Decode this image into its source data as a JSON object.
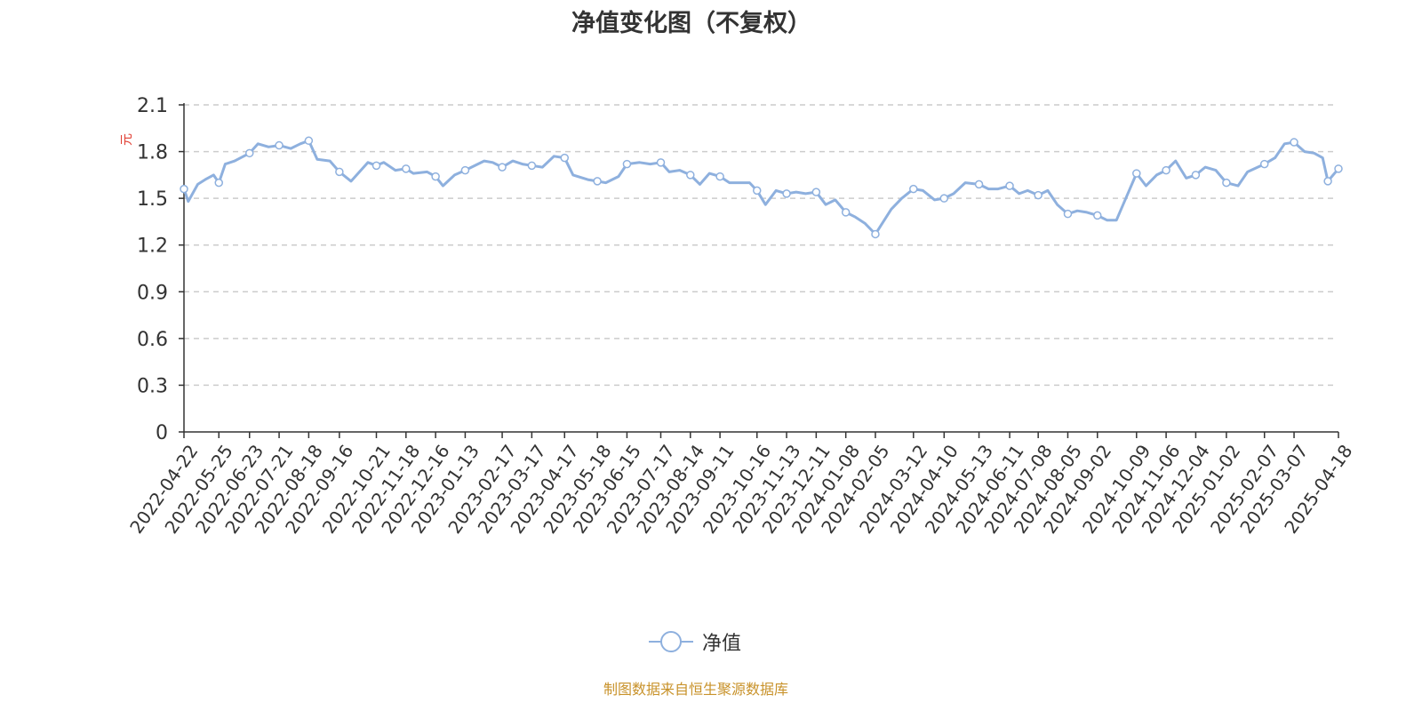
{
  "title": "净值变化图（不复权）",
  "source_note": "制图数据来自恒生聚源数据库",
  "colors": {
    "line": "#8eb0de",
    "unit_label": "#e03a2e",
    "axis": "#333333",
    "grid": "#cccccc",
    "source": "#c8922a"
  },
  "legend": {
    "label": "净值",
    "icon": "line-circle-marker-icon"
  },
  "chart_data": {
    "type": "line",
    "title": "净值变化图（不复权）",
    "ylabel": "元",
    "xlabel": "",
    "ylim": [
      0,
      2.1
    ],
    "yticks": [
      "0",
      "0.3",
      "0.6",
      "0.9",
      "1.2",
      "1.5",
      "1.8",
      "2.1"
    ],
    "grid": true,
    "legend_position": "bottom-center",
    "categories": [
      "2022-04-22",
      "2022-05-25",
      "2022-06-23",
      "2022-07-21",
      "2022-08-18",
      "2022-09-16",
      "2022-10-21",
      "2022-11-18",
      "2022-12-16",
      "2023-01-13",
      "2023-02-17",
      "2023-03-17",
      "2023-04-17",
      "2023-05-18",
      "2023-06-15",
      "2023-07-17",
      "2023-08-14",
      "2023-09-11",
      "2023-10-16",
      "2023-11-13",
      "2023-12-11",
      "2024-01-08",
      "2024-02-05",
      "2024-03-12",
      "2024-04-10",
      "2024-05-13",
      "2024-06-11",
      "2024-07-08",
      "2024-08-05",
      "2024-09-02",
      "2024-10-09",
      "2024-11-06",
      "2024-12-04",
      "2025-01-02",
      "2025-02-07",
      "2025-03-07",
      "2025-04-18"
    ],
    "series": [
      {
        "name": "净值",
        "x": [
          "2022-04-22",
          "2022-04-26",
          "2022-05-05",
          "2022-05-12",
          "2022-05-20",
          "2022-05-25",
          "2022-05-31",
          "2022-06-09",
          "2022-06-23",
          "2022-07-01",
          "2022-07-11",
          "2022-07-21",
          "2022-08-01",
          "2022-08-10",
          "2022-08-18",
          "2022-08-26",
          "2022-09-07",
          "2022-09-16",
          "2022-09-27",
          "2022-10-13",
          "2022-10-21",
          "2022-10-28",
          "2022-11-08",
          "2022-11-18",
          "2022-11-25",
          "2022-12-08",
          "2022-12-16",
          "2022-12-23",
          "2023-01-03",
          "2023-01-13",
          "2023-01-31",
          "2023-02-08",
          "2023-02-17",
          "2023-02-27",
          "2023-03-08",
          "2023-03-17",
          "2023-03-27",
          "2023-04-07",
          "2023-04-17",
          "2023-04-25",
          "2023-05-09",
          "2023-05-18",
          "2023-05-26",
          "2023-06-07",
          "2023-06-15",
          "2023-06-27",
          "2023-07-07",
          "2023-07-17",
          "2023-07-25",
          "2023-08-04",
          "2023-08-14",
          "2023-08-23",
          "2023-09-01",
          "2023-09-11",
          "2023-09-20",
          "2023-10-09",
          "2023-10-16",
          "2023-10-24",
          "2023-11-03",
          "2023-11-13",
          "2023-11-22",
          "2023-12-01",
          "2023-12-11",
          "2023-12-20",
          "2023-12-29",
          "2024-01-08",
          "2024-01-17",
          "2024-01-26",
          "2024-02-05",
          "2024-02-20",
          "2024-03-01",
          "2024-03-12",
          "2024-03-21",
          "2024-04-01",
          "2024-04-10",
          "2024-04-19",
          "2024-04-30",
          "2024-05-13",
          "2024-05-22",
          "2024-05-31",
          "2024-06-11",
          "2024-06-20",
          "2024-06-28",
          "2024-07-08",
          "2024-07-17",
          "2024-07-26",
          "2024-08-05",
          "2024-08-14",
          "2024-08-23",
          "2024-09-02",
          "2024-09-11",
          "2024-09-20",
          "2024-10-09",
          "2024-10-18",
          "2024-10-28",
          "2024-11-06",
          "2024-11-15",
          "2024-11-25",
          "2024-12-04",
          "2024-12-13",
          "2024-12-23",
          "2025-01-02",
          "2025-01-13",
          "2025-01-22",
          "2025-02-07",
          "2025-02-17",
          "2025-02-26",
          "2025-03-07",
          "2025-03-17",
          "2025-03-26",
          "2025-04-03",
          "2025-04-08",
          "2025-04-18"
        ],
        "values": [
          1.56,
          1.48,
          1.59,
          1.62,
          1.65,
          1.6,
          1.72,
          1.74,
          1.79,
          1.85,
          1.83,
          1.84,
          1.82,
          1.85,
          1.87,
          1.75,
          1.74,
          1.67,
          1.61,
          1.73,
          1.71,
          1.73,
          1.68,
          1.69,
          1.66,
          1.67,
          1.64,
          1.58,
          1.65,
          1.68,
          1.74,
          1.73,
          1.7,
          1.74,
          1.72,
          1.71,
          1.7,
          1.77,
          1.76,
          1.65,
          1.62,
          1.61,
          1.6,
          1.64,
          1.72,
          1.73,
          1.72,
          1.73,
          1.67,
          1.68,
          1.65,
          1.59,
          1.66,
          1.64,
          1.6,
          1.6,
          1.55,
          1.46,
          1.55,
          1.53,
          1.54,
          1.53,
          1.54,
          1.46,
          1.49,
          1.41,
          1.38,
          1.34,
          1.27,
          1.43,
          1.5,
          1.56,
          1.55,
          1.49,
          1.5,
          1.53,
          1.6,
          1.59,
          1.56,
          1.56,
          1.58,
          1.53,
          1.55,
          1.52,
          1.55,
          1.46,
          1.4,
          1.42,
          1.41,
          1.39,
          1.36,
          1.36,
          1.66,
          1.58,
          1.65,
          1.68,
          1.74,
          1.63,
          1.65,
          1.7,
          1.68,
          1.6,
          1.58,
          1.67,
          1.72,
          1.76,
          1.85,
          1.86,
          1.8,
          1.79,
          1.76,
          1.61,
          1.69
        ]
      }
    ],
    "marker_points": [
      {
        "x": "2022-04-22",
        "y": 1.56
      },
      {
        "x": "2022-05-25",
        "y": 1.6
      },
      {
        "x": "2022-06-23",
        "y": 1.79
      },
      {
        "x": "2022-07-21",
        "y": 1.84
      },
      {
        "x": "2022-08-18",
        "y": 1.87
      },
      {
        "x": "2022-09-16",
        "y": 1.67
      },
      {
        "x": "2022-10-21",
        "y": 1.71
      },
      {
        "x": "2022-11-18",
        "y": 1.69
      },
      {
        "x": "2022-12-16",
        "y": 1.64
      },
      {
        "x": "2023-01-13",
        "y": 1.68
      },
      {
        "x": "2023-02-17",
        "y": 1.7
      },
      {
        "x": "2023-03-17",
        "y": 1.71
      },
      {
        "x": "2023-04-17",
        "y": 1.76
      },
      {
        "x": "2023-05-18",
        "y": 1.61
      },
      {
        "x": "2023-06-15",
        "y": 1.72
      },
      {
        "x": "2023-07-17",
        "y": 1.73
      },
      {
        "x": "2023-08-14",
        "y": 1.65
      },
      {
        "x": "2023-09-11",
        "y": 1.64
      },
      {
        "x": "2023-10-16",
        "y": 1.55
      },
      {
        "x": "2023-11-13",
        "y": 1.53
      },
      {
        "x": "2023-12-11",
        "y": 1.54
      },
      {
        "x": "2024-01-08",
        "y": 1.41
      },
      {
        "x": "2024-02-05",
        "y": 1.27
      },
      {
        "x": "2024-03-12",
        "y": 1.56
      },
      {
        "x": "2024-04-10",
        "y": 1.5
      },
      {
        "x": "2024-05-13",
        "y": 1.59
      },
      {
        "x": "2024-06-11",
        "y": 1.58
      },
      {
        "x": "2024-07-08",
        "y": 1.52
      },
      {
        "x": "2024-08-05",
        "y": 1.4
      },
      {
        "x": "2024-09-02",
        "y": 1.39
      },
      {
        "x": "2024-10-09",
        "y": 1.66
      },
      {
        "x": "2024-11-06",
        "y": 1.68
      },
      {
        "x": "2024-12-04",
        "y": 1.65
      },
      {
        "x": "2025-01-02",
        "y": 1.6
      },
      {
        "x": "2025-02-07",
        "y": 1.72
      },
      {
        "x": "2025-03-07",
        "y": 1.86
      },
      {
        "x": "2025-04-08",
        "y": 1.61
      },
      {
        "x": "2025-04-18",
        "y": 1.69
      }
    ]
  }
}
